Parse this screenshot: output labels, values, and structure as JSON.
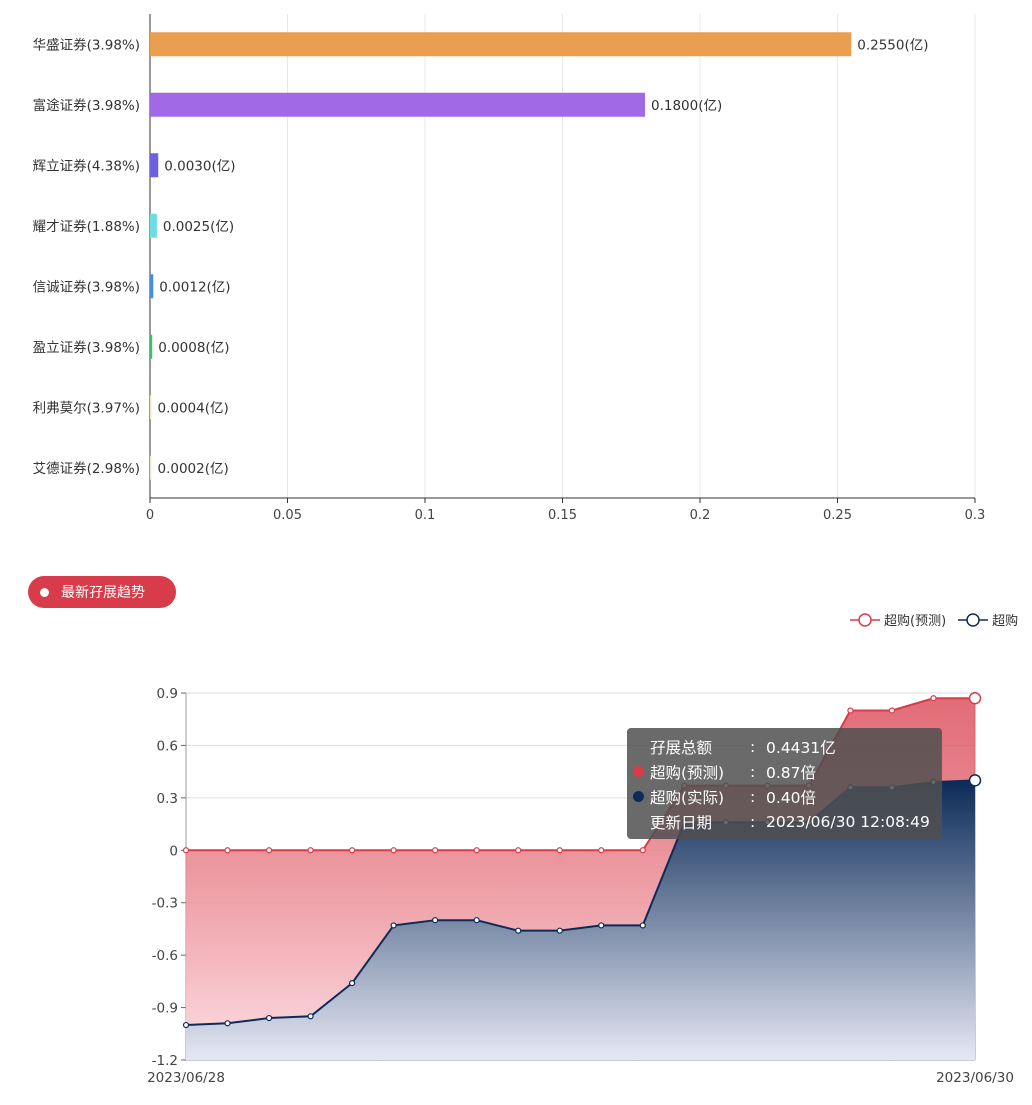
{
  "chart_data": [
    {
      "type": "bar",
      "orientation": "horizontal",
      "categories": [
        "华盛证券(3.98%)",
        "富途证券(3.98%)",
        "辉立证券(4.38%)",
        "耀才证券(1.88%)",
        "信诚证券(3.98%)",
        "盈立证券(3.98%)",
        "利弗莫尔(3.97%)",
        "艾德证券(2.98%)"
      ],
      "values": [
        0.255,
        0.18,
        0.003,
        0.0025,
        0.0012,
        0.0008,
        0.0004,
        0.0002
      ],
      "value_labels": [
        "0.2550(亿)",
        "0.1800(亿)",
        "0.0030(亿)",
        "0.0025(亿)",
        "0.0012(亿)",
        "0.0008(亿)",
        "0.0004(亿)",
        "0.0002(亿)"
      ],
      "colors": [
        "#e99e50",
        "#a269e6",
        "#6a60e0",
        "#6fdce2",
        "#4a8ed4",
        "#3fbe6a",
        "#f0e9c8",
        "#e8f0d8"
      ],
      "xlim": [
        0,
        0.3
      ],
      "xticks": [
        "0",
        "0.05",
        "0.1",
        "0.15",
        "0.2",
        "0.25",
        "0.3"
      ],
      "grid": true
    },
    {
      "type": "area",
      "x_labels": [
        "2023/06/28",
        "2023/06/30"
      ],
      "ylim": [
        -1.2,
        0.9
      ],
      "yticks": [
        "0.9",
        "0.6",
        "0.3",
        "0",
        "-0.3",
        "-0.6",
        "-0.9",
        "-1.2"
      ],
      "series": [
        {
          "name": "超购(预测)",
          "color": "#d83c4a",
          "values": [
            0,
            0,
            0,
            0,
            0,
            0,
            0,
            0,
            0,
            0,
            0,
            0,
            0.37,
            0.37,
            0.37,
            0.37,
            0.8,
            0.8,
            0.87,
            0.87
          ]
        },
        {
          "name": "超购(实际)",
          "color": "#0c2b58",
          "values": [
            -1.0,
            -0.99,
            -0.96,
            -0.95,
            -0.76,
            -0.43,
            -0.4,
            -0.4,
            -0.46,
            -0.46,
            -0.43,
            -0.43,
            0.16,
            0.16,
            0.16,
            0.16,
            0.36,
            0.36,
            0.39,
            0.4
          ]
        }
      ],
      "legend": [
        "超购(预测)",
        "超购"
      ]
    }
  ],
  "section": {
    "title": "最新孖展趋势"
  },
  "tooltip": {
    "total_label": "孖展总额",
    "total_value": "0.4431亿",
    "pred_label": "超购(预测)",
    "pred_value": "0.87倍",
    "actual_label": "超购(实际)",
    "actual_value": "0.40倍",
    "date_label": "更新日期",
    "date_value": "2023/06/30 12:08:49",
    "colon": ":"
  }
}
